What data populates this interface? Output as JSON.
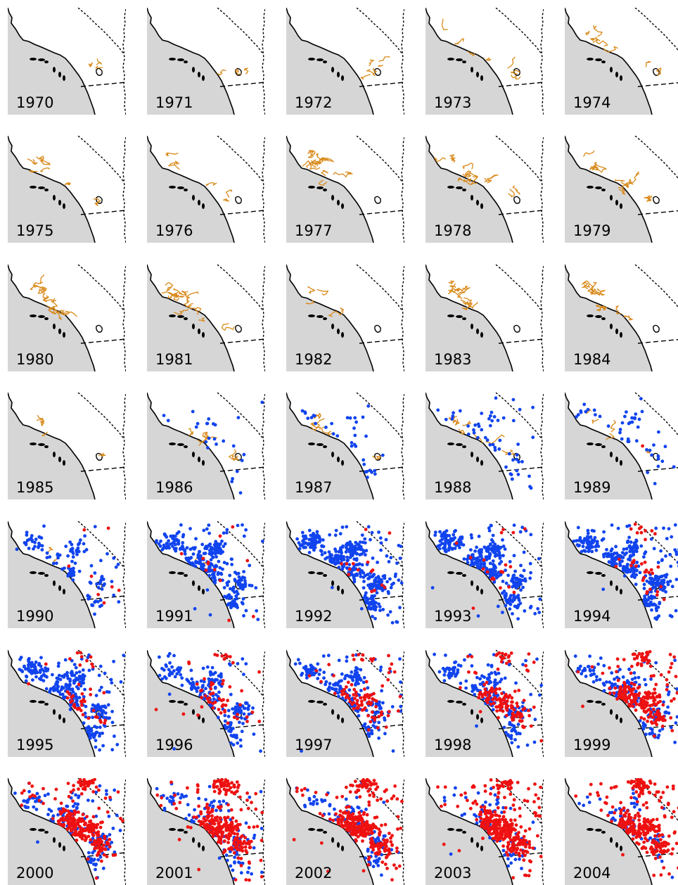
{
  "chart_data": {
    "type": "small-multiple maps",
    "colors": {
      "land": "#ffffff",
      "ocean": "#d6d6d6",
      "coastline": "#000000",
      "state_border": "#000000",
      "track": "#d98a1a",
      "blue_points": "#1144ee",
      "red_points": "#ee1111"
    },
    "panels": [
      {
        "year": "1970",
        "track": 0.15,
        "blue": 0,
        "red": 0
      },
      {
        "year": "1971",
        "track": 0.12,
        "blue": 0,
        "red": 0
      },
      {
        "year": "1972",
        "track": 0.35,
        "blue": 0,
        "red": 0
      },
      {
        "year": "1973",
        "track": 0.45,
        "blue": 0,
        "red": 0
      },
      {
        "year": "1974",
        "track": 0.4,
        "blue": 0,
        "red": 0
      },
      {
        "year": "1975",
        "track": 0.5,
        "blue": 0,
        "red": 0
      },
      {
        "year": "1976",
        "track": 0.35,
        "blue": 0,
        "red": 0
      },
      {
        "year": "1977",
        "track": 0.85,
        "blue": 0,
        "red": 0
      },
      {
        "year": "1978",
        "track": 0.8,
        "blue": 0,
        "red": 0
      },
      {
        "year": "1979",
        "track": 0.8,
        "blue": 0,
        "red": 0
      },
      {
        "year": "1980",
        "track": 0.75,
        "blue": 0,
        "red": 0
      },
      {
        "year": "1981",
        "track": 0.9,
        "blue": 0,
        "red": 0
      },
      {
        "year": "1982",
        "track": 0.35,
        "blue": 0,
        "red": 0
      },
      {
        "year": "1983",
        "track": 0.7,
        "blue": 0,
        "red": 0
      },
      {
        "year": "1984",
        "track": 0.75,
        "blue": 0,
        "red": 0
      },
      {
        "year": "1985",
        "track": 0.3,
        "blue": 0,
        "red": 0
      },
      {
        "year": "1986",
        "track": 0.4,
        "blue": 25,
        "red": 0
      },
      {
        "year": "1987",
        "track": 0.45,
        "blue": 35,
        "red": 0
      },
      {
        "year": "1988",
        "track": 0.6,
        "blue": 55,
        "red": 0
      },
      {
        "year": "1989",
        "track": 0.3,
        "blue": 45,
        "red": 1
      },
      {
        "year": "1990",
        "track": 0.08,
        "blue": 120,
        "red": 8
      },
      {
        "year": "1991",
        "track": 0.1,
        "blue": 300,
        "red": 12
      },
      {
        "year": "1992",
        "track": 0,
        "blue": 380,
        "red": 15
      },
      {
        "year": "1993",
        "track": 0,
        "blue": 340,
        "red": 20
      },
      {
        "year": "1994",
        "track": 0,
        "blue": 330,
        "red": 35
      },
      {
        "year": "1995",
        "track": 0,
        "blue": 300,
        "red": 45
      },
      {
        "year": "1996",
        "track": 0,
        "blue": 200,
        "red": 60
      },
      {
        "year": "1997",
        "track": 0,
        "blue": 210,
        "red": 90
      },
      {
        "year": "1998",
        "track": 0,
        "blue": 180,
        "red": 140
      },
      {
        "year": "1999",
        "track": 0,
        "blue": 160,
        "red": 230
      },
      {
        "year": "2000",
        "track": 0,
        "blue": 140,
        "red": 260
      },
      {
        "year": "2001",
        "track": 0,
        "blue": 110,
        "red": 300
      },
      {
        "year": "2002",
        "track": 0,
        "blue": 100,
        "red": 320
      },
      {
        "year": "2003",
        "track": 0,
        "blue": 70,
        "red": 330
      },
      {
        "year": "2004",
        "track": 0,
        "blue": 55,
        "red": 300
      }
    ]
  }
}
